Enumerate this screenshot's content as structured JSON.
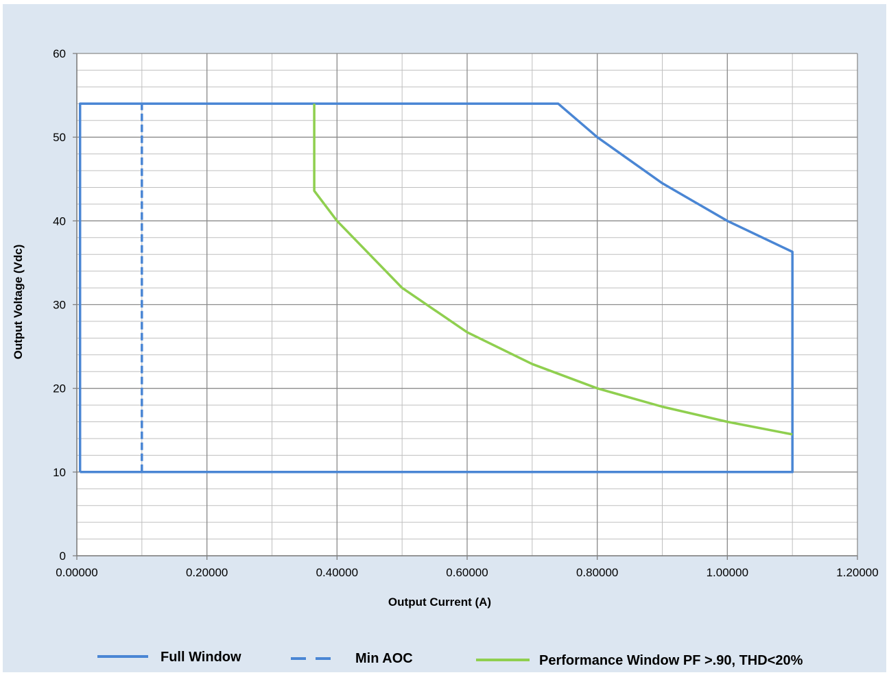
{
  "chart_data": {
    "type": "line",
    "title": "",
    "xlabel": "Output Current (A)",
    "ylabel": "Output Voltage (Vdc)",
    "xlim": [
      0,
      1.2
    ],
    "ylim": [
      0,
      60
    ],
    "x_ticks": [
      0,
      0.2,
      0.4,
      0.6,
      0.8,
      1.0,
      1.2
    ],
    "x_tick_labels": [
      "0.00000",
      "0.20000",
      "0.40000",
      "0.60000",
      "0.80000",
      "1.00000",
      "1.20000"
    ],
    "y_ticks": [
      0,
      10,
      20,
      30,
      40,
      50,
      60
    ],
    "y_tick_labels": [
      "0",
      "10",
      "20",
      "30",
      "40",
      "50",
      "60"
    ],
    "x_minor_step": 0.1,
    "y_minor_step": 2,
    "grid": true,
    "legend_position": "bottom",
    "series": [
      {
        "name": "Full Window",
        "style": "solid",
        "color": "#4a86d4",
        "points": [
          [
            0.005,
            10
          ],
          [
            0.005,
            54
          ],
          [
            0.74,
            54
          ],
          [
            0.8,
            50
          ],
          [
            0.9,
            44.5
          ],
          [
            1.0,
            40
          ],
          [
            1.1,
            36.3
          ],
          [
            1.1,
            10
          ],
          [
            0.005,
            10
          ]
        ]
      },
      {
        "name": "Min AOC",
        "style": "dashed",
        "color": "#4a86d4",
        "points": [
          [
            0.1,
            10
          ],
          [
            0.1,
            54
          ]
        ]
      },
      {
        "name": "Performance Window PF >.90, THD<20%",
        "style": "solid",
        "color": "#8fcf4f",
        "points": [
          [
            0.365,
            54
          ],
          [
            0.365,
            43.6
          ],
          [
            0.4,
            40
          ],
          [
            0.5,
            32
          ],
          [
            0.6,
            26.7
          ],
          [
            0.7,
            22.9
          ],
          [
            0.8,
            20
          ],
          [
            0.9,
            17.8
          ],
          [
            1.0,
            16
          ],
          [
            1.1,
            14.5
          ]
        ]
      }
    ]
  }
}
